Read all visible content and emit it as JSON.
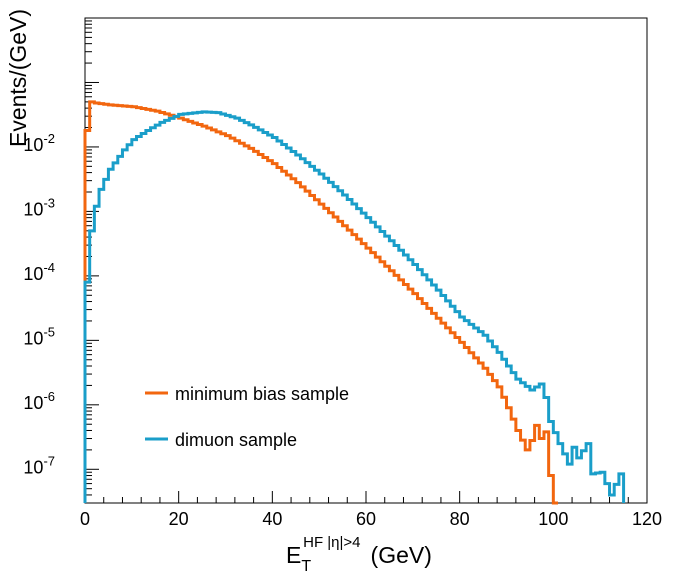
{
  "chart_data": {
    "type": "line",
    "style": "step-histogram",
    "xlabel_main": "E",
    "xlabel_sub": "T",
    "xlabel_sup": "HF |η|>4",
    "xlabel_unit": "(GeV)",
    "ylabel": "Events/(GeV)",
    "xlim": [
      0,
      120
    ],
    "ylim": [
      3e-08,
      1.0
    ],
    "yscale": "log",
    "grid": false,
    "legend_position": "bottom-left",
    "x_ticks": [
      "0",
      "20",
      "40",
      "60",
      "80",
      "100",
      "120"
    ],
    "y_ticks": [
      {
        "base": "10",
        "exp": "-2",
        "value": 0.01
      },
      {
        "base": "10",
        "exp": "-3",
        "value": 0.001
      },
      {
        "base": "10",
        "exp": "-4",
        "value": 0.0001
      },
      {
        "base": "10",
        "exp": "-5",
        "value": 1e-05
      },
      {
        "base": "10",
        "exp": "-6",
        "value": 1e-06
      },
      {
        "base": "10",
        "exp": "-7",
        "value": 1e-07
      }
    ],
    "bin_width": 1,
    "series": [
      {
        "name": "minimum bias sample",
        "color": "#f2660f",
        "points": [
          [
            0,
            0.018
          ],
          [
            1,
            0.05
          ],
          [
            2,
            0.048
          ],
          [
            5,
            0.045
          ],
          [
            10,
            0.042
          ],
          [
            15,
            0.036
          ],
          [
            20,
            0.028
          ],
          [
            25,
            0.021
          ],
          [
            30,
            0.015
          ],
          [
            35,
            0.0095
          ],
          [
            40,
            0.0055
          ],
          [
            45,
            0.0028
          ],
          [
            50,
            0.0013
          ],
          [
            55,
            0.0006
          ],
          [
            60,
            0.00027
          ],
          [
            65,
            0.00012
          ],
          [
            70,
            5.3e-05
          ],
          [
            75,
            2.2e-05
          ],
          [
            80,
            9.3e-06
          ],
          [
            85,
            3.7e-06
          ],
          [
            88,
            1.9e-06
          ],
          [
            90,
            9e-07
          ],
          [
            92,
            4e-07
          ],
          [
            94,
            2e-07
          ],
          [
            95,
            2.8e-07
          ],
          [
            96,
            4.8e-07
          ],
          [
            97,
            3e-07
          ],
          [
            98,
            3.8e-07
          ],
          [
            99,
            8e-08
          ],
          [
            101,
            0
          ]
        ]
      },
      {
        "name": "dimuon sample",
        "color": "#1a9ec9",
        "points": [
          [
            0,
            8e-05
          ],
          [
            1,
            0.0005
          ],
          [
            2,
            0.0012
          ],
          [
            3,
            0.0022
          ],
          [
            5,
            0.0045
          ],
          [
            8,
            0.009
          ],
          [
            10,
            0.013
          ],
          [
            13,
            0.018
          ],
          [
            16,
            0.024
          ],
          [
            20,
            0.032
          ],
          [
            25,
            0.035
          ],
          [
            28,
            0.034
          ],
          [
            32,
            0.028
          ],
          [
            35,
            0.022
          ],
          [
            40,
            0.014
          ],
          [
            45,
            0.0075
          ],
          [
            50,
            0.0038
          ],
          [
            55,
            0.0018
          ],
          [
            60,
            0.0008
          ],
          [
            65,
            0.00035
          ],
          [
            70,
            0.00015
          ],
          [
            75,
            6e-05
          ],
          [
            80,
            2.3e-05
          ],
          [
            85,
            1.2e-05
          ],
          [
            88,
            6.5e-06
          ],
          [
            90,
            4e-06
          ],
          [
            92,
            2.5e-06
          ],
          [
            95,
            1.7e-06
          ],
          [
            97,
            2.1e-06
          ],
          [
            98,
            1.3e-06
          ],
          [
            99,
            5.5e-07
          ],
          [
            101,
            2.5e-07
          ],
          [
            103,
            1.2e-07
          ],
          [
            104,
            2.2e-07
          ],
          [
            105,
            1.5e-07
          ],
          [
            107,
            2.5e-07
          ],
          [
            108,
            8.5e-08
          ],
          [
            110,
            9e-08
          ],
          [
            112,
            4e-08
          ],
          [
            114,
            8.5e-08
          ],
          [
            115,
            0
          ]
        ]
      }
    ]
  }
}
